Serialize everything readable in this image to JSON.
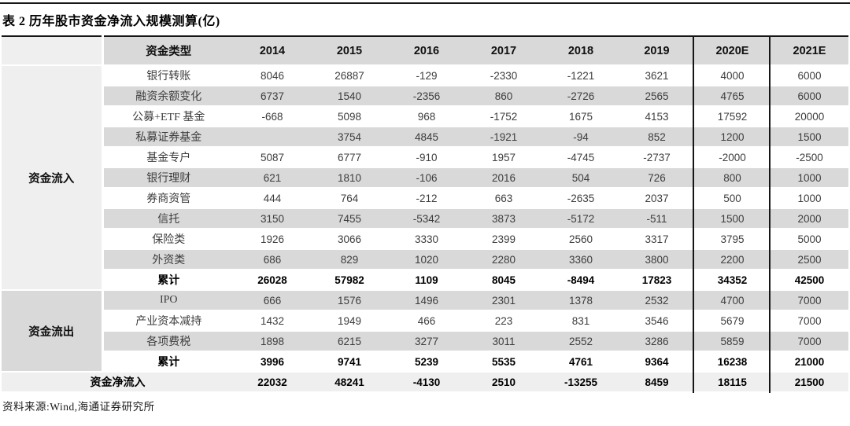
{
  "page": {
    "title": "表 2 历年股市资金净流入规模测算(亿)",
    "source_note": "资料来源:Wind,海通证券研究所"
  },
  "colors": {
    "header_bg": "#d9d9d9",
    "stripe_bg": "#d9d9d9",
    "light_bg": "#efefef",
    "rule_black": "#161616"
  },
  "table": {
    "columns": [
      "资金类型",
      "2014",
      "2015",
      "2016",
      "2017",
      "2018",
      "2019",
      "2020E",
      "2021E"
    ],
    "groups": [
      {
        "label": "资金流入",
        "bg": "#efefef",
        "rows": [
          {
            "label": "银行转账",
            "bold": false,
            "values": [
              "8046",
              "26887",
              "-129",
              "-2330",
              "-1221",
              "3621",
              "4000",
              "6000"
            ]
          },
          {
            "label": "融资余额变化",
            "bold": false,
            "values": [
              "6737",
              "1540",
              "-2356",
              "860",
              "-2726",
              "2565",
              "4765",
              "6000"
            ]
          },
          {
            "label": "公募+ETF 基金",
            "bold": false,
            "values": [
              "-668",
              "5098",
              "968",
              "-1752",
              "1675",
              "4153",
              "17592",
              "20000"
            ]
          },
          {
            "label": "私募证券基金",
            "bold": false,
            "values": [
              "",
              "3754",
              "4845",
              "-1921",
              "-94",
              "852",
              "1200",
              "1500"
            ]
          },
          {
            "label": "基金专户",
            "bold": false,
            "values": [
              "5087",
              "6777",
              "-910",
              "1957",
              "-4745",
              "-2737",
              "-2000",
              "-2500"
            ]
          },
          {
            "label": "银行理财",
            "bold": false,
            "values": [
              "621",
              "1810",
              "-106",
              "2016",
              "504",
              "726",
              "800",
              "1000"
            ]
          },
          {
            "label": "券商资管",
            "bold": false,
            "values": [
              "444",
              "764",
              "-212",
              "663",
              "-2635",
              "2037",
              "500",
              "1000"
            ]
          },
          {
            "label": "信托",
            "bold": false,
            "values": [
              "3150",
              "7455",
              "-5342",
              "3873",
              "-5172",
              "-511",
              "1500",
              "2000"
            ]
          },
          {
            "label": "保险类",
            "bold": false,
            "values": [
              "1926",
              "3066",
              "3330",
              "2399",
              "2560",
              "3317",
              "3795",
              "5000"
            ]
          },
          {
            "label": "外资类",
            "bold": false,
            "values": [
              "686",
              "829",
              "1020",
              "2280",
              "3360",
              "3800",
              "2200",
              "2500"
            ]
          },
          {
            "label": "累计",
            "bold": true,
            "values": [
              "26028",
              "57982",
              "1109",
              "8045",
              "-8494",
              "17823",
              "34352",
              "42500"
            ]
          }
        ]
      },
      {
        "label": "资金流出",
        "bg": "#d9d9d9",
        "rows": [
          {
            "label": "IPO",
            "bold": false,
            "values": [
              "666",
              "1576",
              "1496",
              "2301",
              "1378",
              "2532",
              "4700",
              "7000"
            ]
          },
          {
            "label": "产业资本减持",
            "bold": false,
            "values": [
              "1432",
              "1949",
              "466",
              "223",
              "831",
              "3546",
              "5679",
              "7000"
            ]
          },
          {
            "label": "各项费税",
            "bold": false,
            "values": [
              "1898",
              "6215",
              "3277",
              "3011",
              "2552",
              "3286",
              "5859",
              "7000"
            ]
          },
          {
            "label": "累计",
            "bold": true,
            "values": [
              "3996",
              "9741",
              "5239",
              "5535",
              "4761",
              "9364",
              "16238",
              "21000"
            ]
          }
        ]
      }
    ],
    "net_row": {
      "label": "资金净流入",
      "values": [
        "22032",
        "48241",
        "-4130",
        "2510",
        "-13255",
        "8459",
        "18115",
        "21500"
      ]
    }
  }
}
